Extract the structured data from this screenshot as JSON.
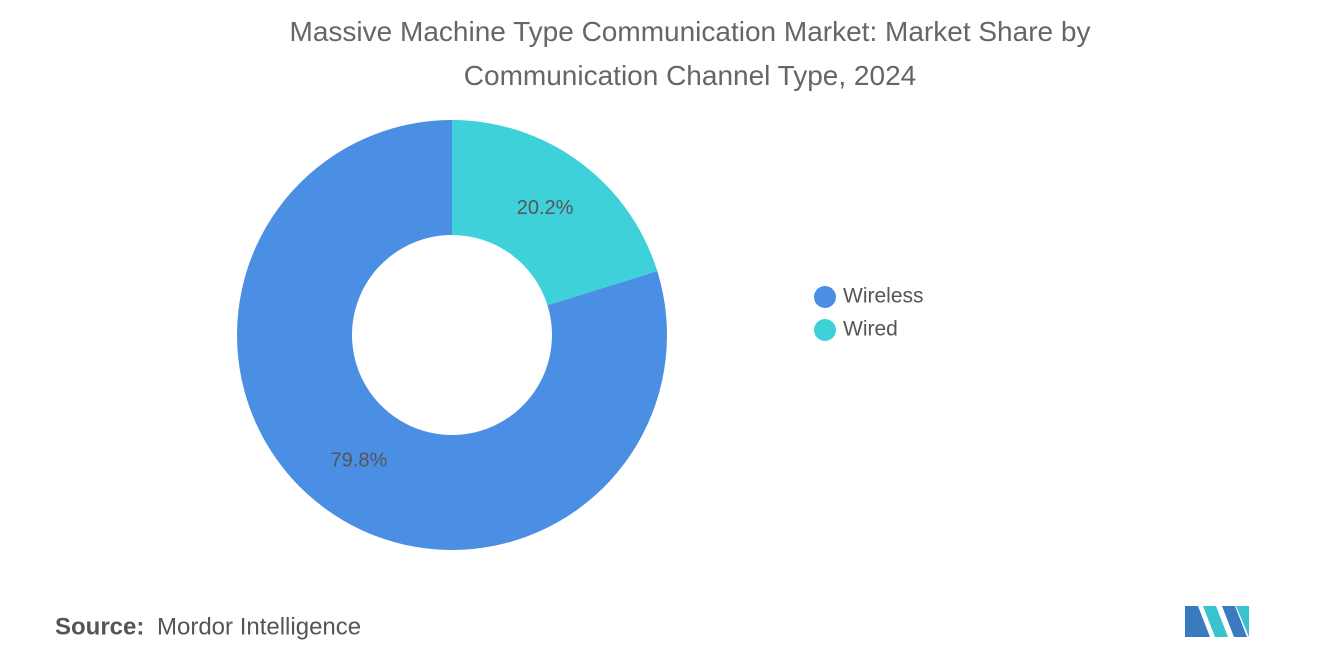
{
  "chart_data": {
    "type": "donut",
    "title": "Massive Machine Type Communication Market: Market Share by Communication Channel Type, 2024",
    "categories": [
      "Wireless",
      "Wired"
    ],
    "series": [
      {
        "name": "Market Share",
        "values": [
          79.8,
          20.2
        ],
        "value_labels": [
          "79.8%",
          "20.2%"
        ],
        "colors": [
          "#4a8fe3",
          "#3fd1da"
        ]
      }
    ],
    "start_category": 1,
    "legend": "right"
  },
  "footer": {
    "source_label": "Source:",
    "source": "Mordor Intelligence"
  }
}
